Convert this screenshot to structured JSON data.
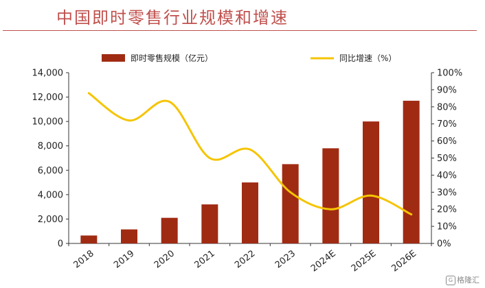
{
  "title": "中国即时零售行业规模和增速",
  "watermark": "格隆汇",
  "colors": {
    "bar": "#a02b13",
    "line": "#f5c400",
    "title": "#c0504d"
  },
  "chart_data": {
    "type": "bar+line",
    "categories": [
      "2018",
      "2019",
      "2020",
      "2021",
      "2022",
      "2023",
      "2024E",
      "2025E",
      "2026E"
    ],
    "series": [
      {
        "name": "即时零售规模（亿元）",
        "type": "bar",
        "axis": "left",
        "values": [
          650,
          1150,
          2100,
          3200,
          5000,
          6500,
          7800,
          10000,
          11700
        ]
      },
      {
        "name": "同比增速（%）",
        "type": "line",
        "axis": "right",
        "values": [
          88,
          72,
          83,
          50,
          55,
          30,
          20,
          28,
          17
        ]
      }
    ],
    "y_left": {
      "min": 0,
      "max": 14000,
      "ticks": [
        "0",
        "2,000",
        "4,000",
        "6,000",
        "8,000",
        "10,000",
        "12,000",
        "14,000"
      ]
    },
    "y_right": {
      "min": 0,
      "max": 100,
      "ticks": [
        "0%",
        "10%",
        "20%",
        "30%",
        "40%",
        "50%",
        "60%",
        "70%",
        "80%",
        "90%",
        "100%"
      ]
    },
    "legend_position": "top",
    "grid": false
  }
}
